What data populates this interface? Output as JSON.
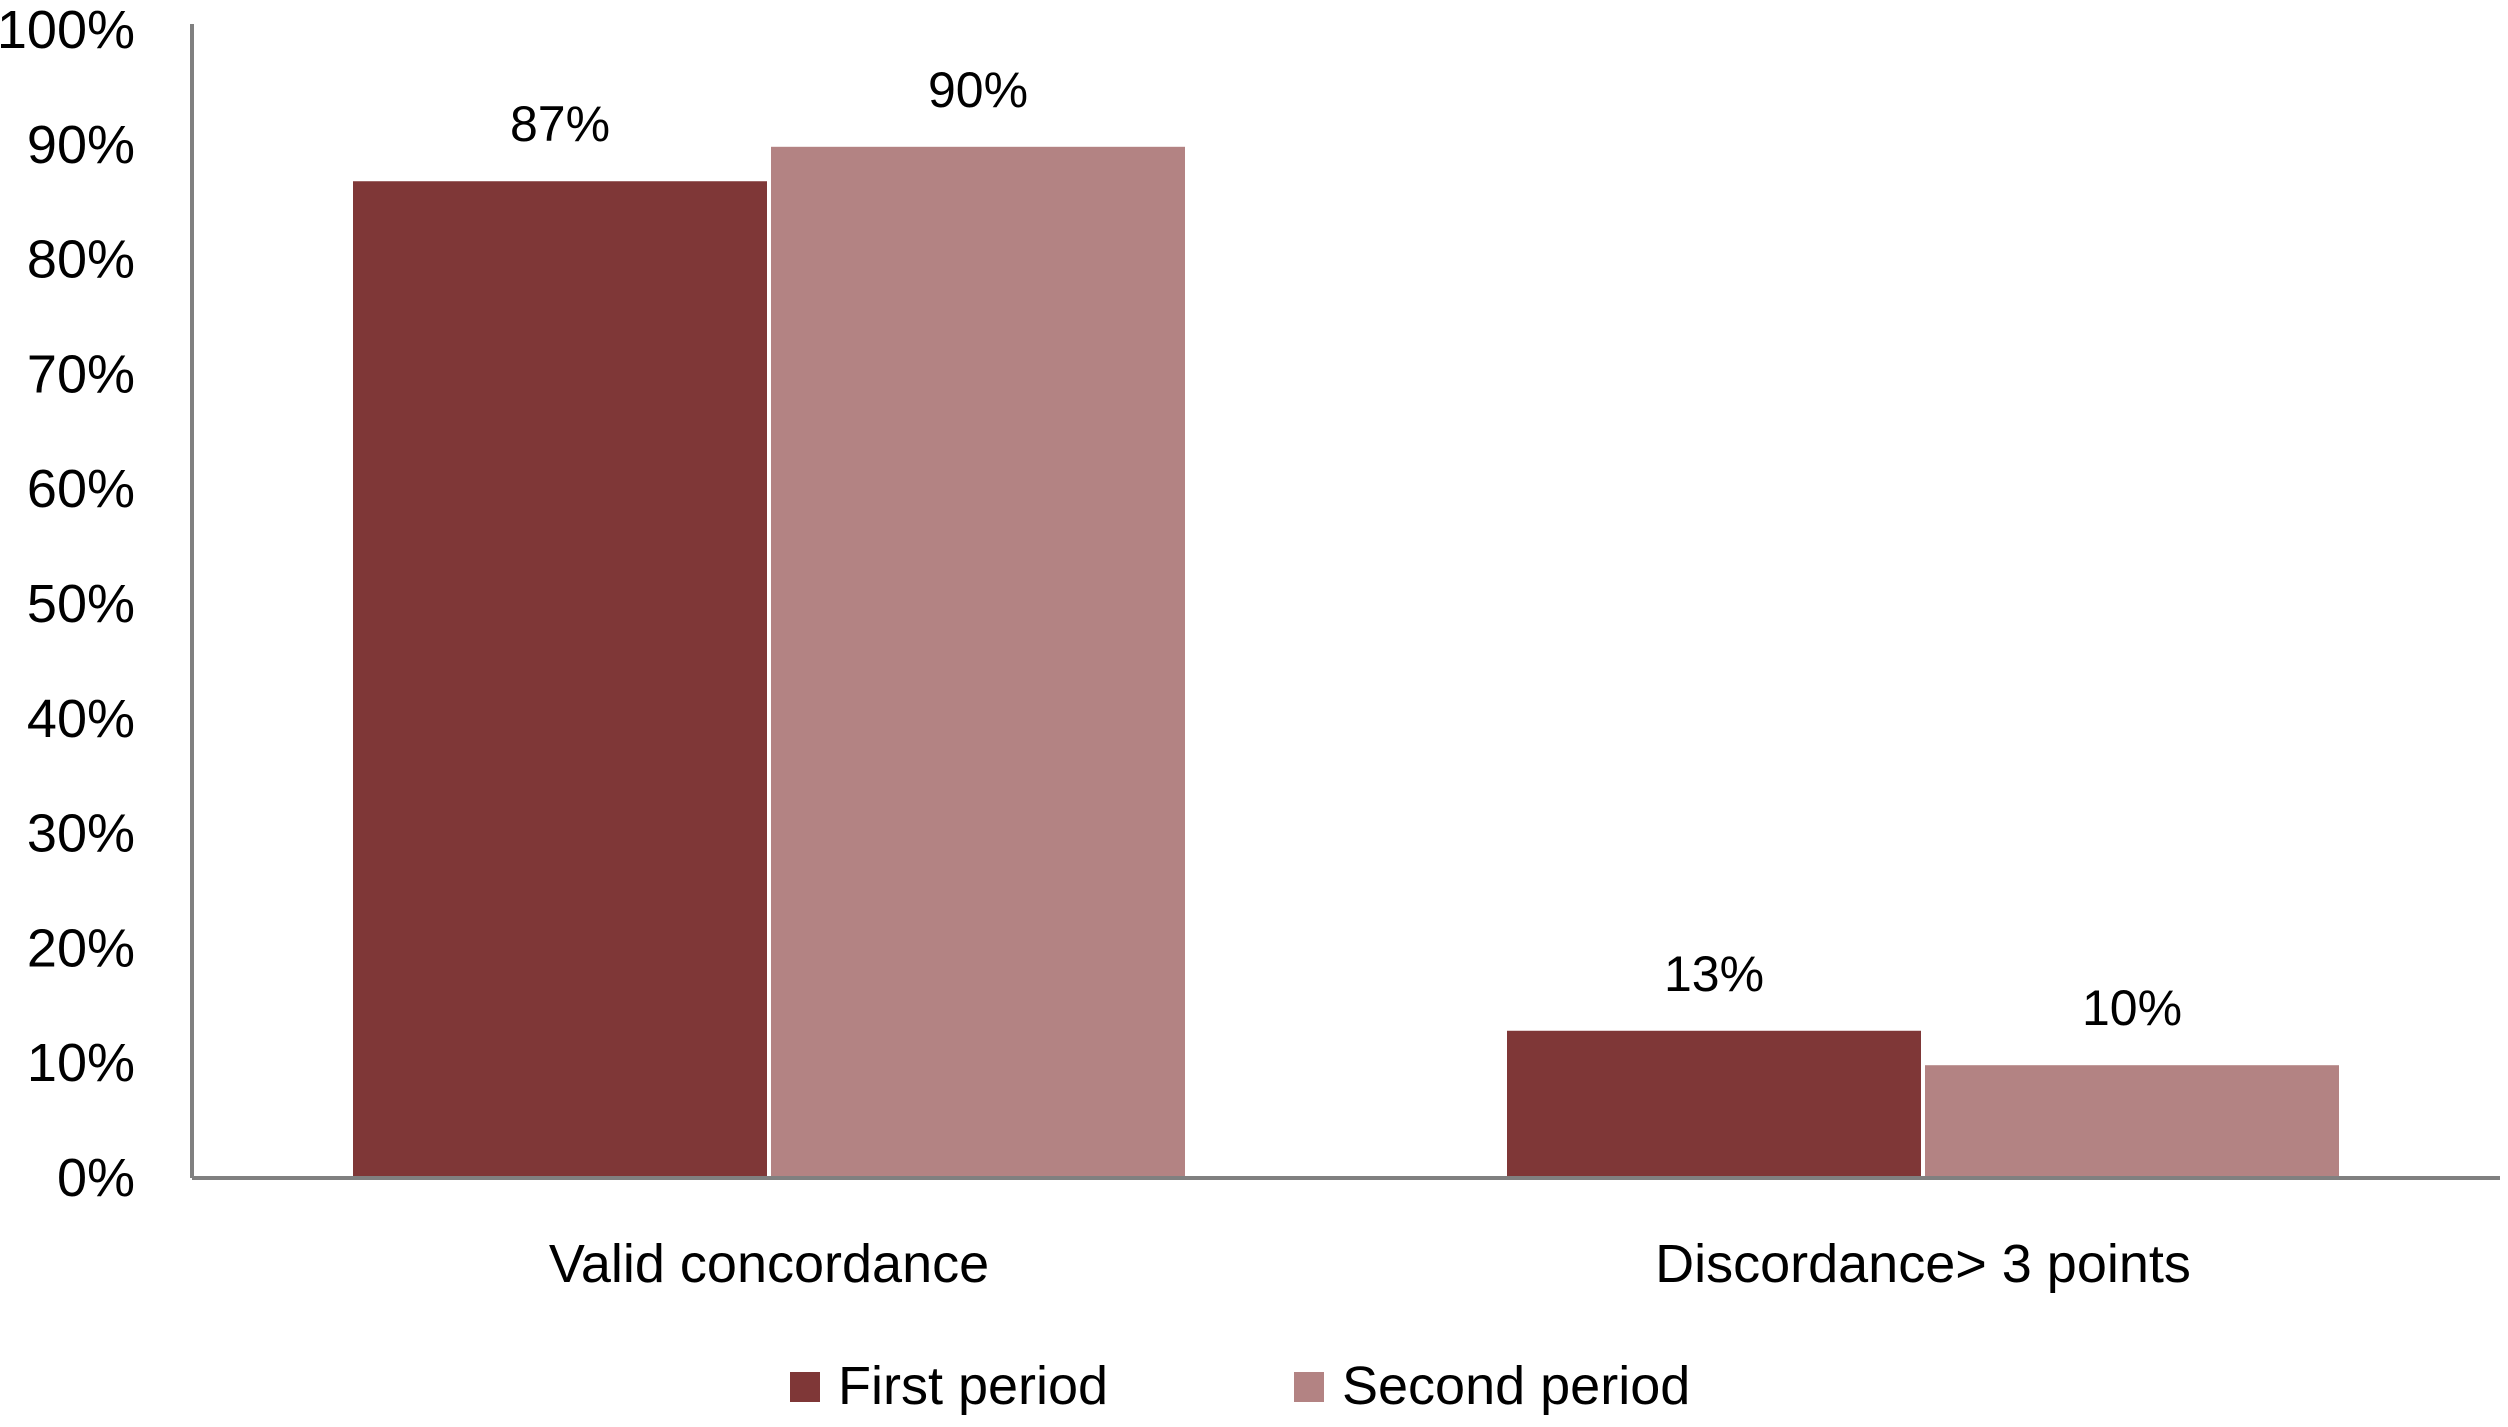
{
  "chart_data": {
    "type": "bar",
    "title": "",
    "xlabel": "",
    "ylabel": "",
    "categories": [
      "Valid concordance",
      "Discordance> 3 points"
    ],
    "series": [
      {
        "name": "First period",
        "values": [
          87,
          13
        ],
        "value_labels": [
          "87%",
          "13%"
        ],
        "color": "#7F3737"
      },
      {
        "name": "Second period",
        "values": [
          90,
          10
        ],
        "value_labels": [
          "90%",
          "10%"
        ],
        "color": "#B38383"
      }
    ],
    "ylim": [
      0,
      100
    ],
    "y_ticks": [
      0,
      10,
      20,
      30,
      40,
      50,
      60,
      70,
      80,
      90,
      100
    ],
    "y_tick_labels": [
      "0%",
      "10%",
      "20%",
      "30%",
      "40%",
      "50%",
      "60%",
      "70%",
      "80%",
      "90%",
      "100%"
    ],
    "grid": false,
    "legend_position": "bottom",
    "axis_color": "#808080"
  }
}
